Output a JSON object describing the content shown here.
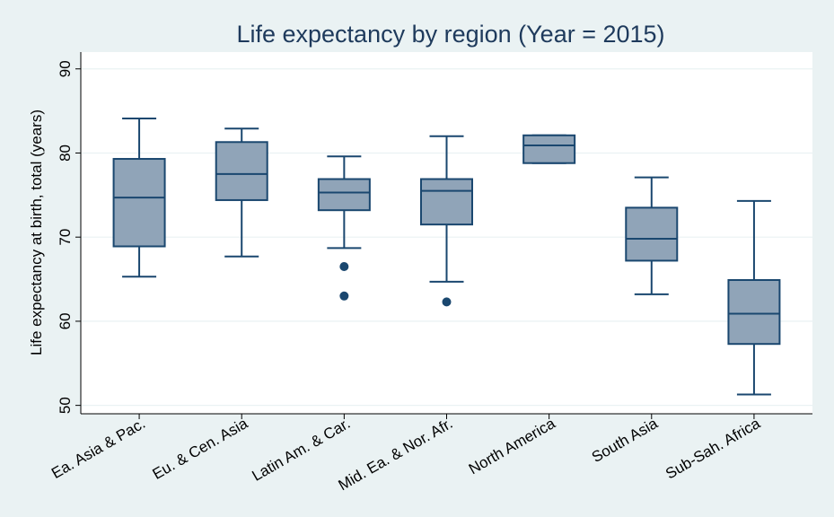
{
  "chart_data": {
    "type": "box",
    "title": "Life expectancy by region (Year = 2015)",
    "xlabel": "",
    "ylabel": "Life expectancy at birth, total (years)",
    "ylim": [
      49,
      92
    ],
    "yticks": [
      50,
      60,
      70,
      80,
      90
    ],
    "grid": true,
    "legend": "none",
    "colors": {
      "background": "#eaf2f3",
      "plot_bg": "#ffffff",
      "box_fill": "#90a4b8",
      "line": "#1a476f",
      "grid": "#eaf2f3",
      "text": "#000000",
      "title": "#1e3a5c"
    },
    "categories": [
      "Ea. Asia & Pac.",
      "Eu. & Cen. Asia",
      "Latin Am. & Car.",
      "Mid. Ea. & Nor. Afr.",
      "North America",
      "South Asia",
      "Sub-Sah. Africa"
    ],
    "boxes": [
      {
        "min": 65.3,
        "q1": 68.9,
        "median": 74.7,
        "q3": 79.3,
        "max": 84.1,
        "outliers": []
      },
      {
        "min": 67.7,
        "q1": 74.4,
        "median": 77.5,
        "q3": 81.3,
        "max": 82.9,
        "outliers": []
      },
      {
        "min": 68.7,
        "q1": 73.2,
        "median": 75.3,
        "q3": 76.9,
        "max": 79.6,
        "outliers": [
          66.5,
          63.0
        ]
      },
      {
        "min": 64.7,
        "q1": 71.5,
        "median": 75.5,
        "q3": 76.9,
        "max": 82.0,
        "outliers": [
          62.3
        ]
      },
      {
        "min": 78.8,
        "q1": 78.8,
        "median": 80.9,
        "q3": 82.1,
        "max": 82.1,
        "outliers": []
      },
      {
        "min": 63.2,
        "q1": 67.2,
        "median": 69.8,
        "q3": 73.5,
        "max": 77.1,
        "outliers": []
      },
      {
        "min": 51.3,
        "q1": 57.3,
        "median": 60.9,
        "q3": 64.9,
        "max": 74.3,
        "outliers": []
      }
    ]
  }
}
